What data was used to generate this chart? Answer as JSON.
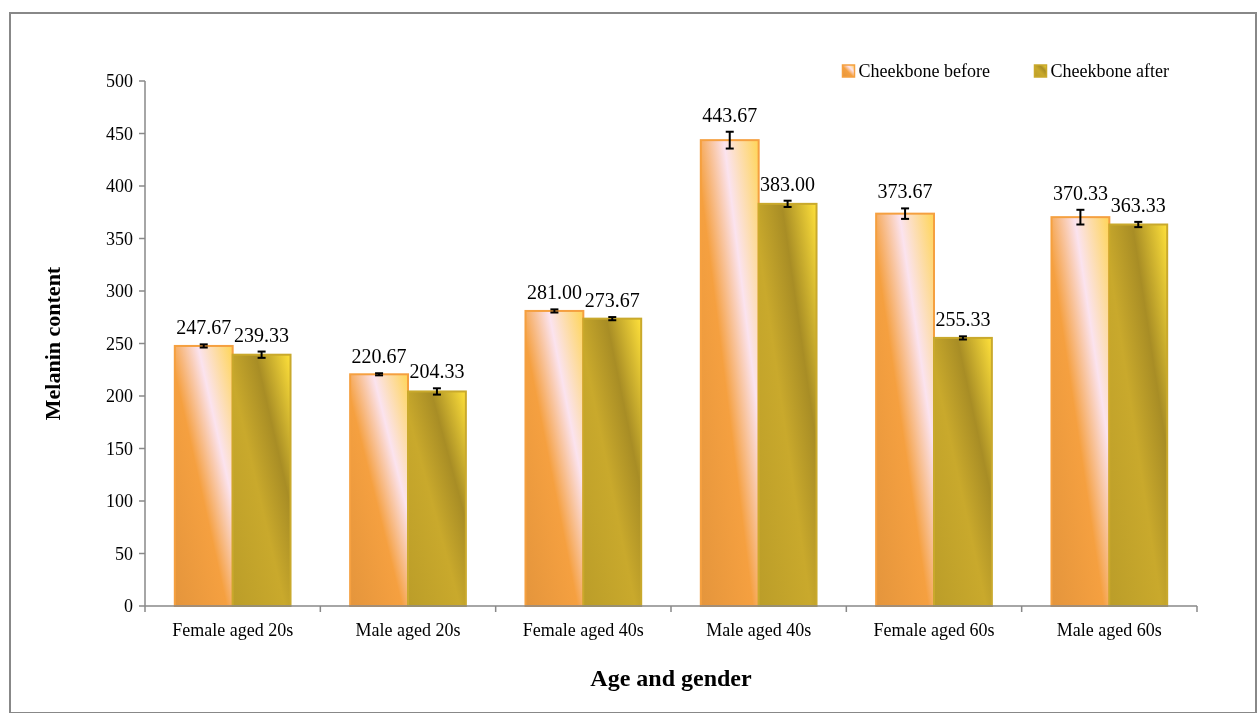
{
  "chart_data": {
    "type": "bar",
    "xlabel": "Age and gender",
    "ylabel": "Melanin content",
    "categories": [
      "Female aged 20s",
      "Male aged 20s",
      "Female aged 40s",
      "Male aged 40s",
      "Female aged 60s",
      "Male aged 60s"
    ],
    "series": [
      {
        "name": "Cheekbone before",
        "color": "#f5a040",
        "values": [
          247.67,
          220.67,
          281.0,
          443.67,
          373.67,
          370.33
        ],
        "errors": [
          1.5,
          1,
          1.5,
          8,
          5,
          7
        ],
        "value_labels": [
          "247.67",
          "220.67",
          "281.00",
          "443.67",
          "373.67",
          "370.33"
        ]
      },
      {
        "name": "Cheekbone after",
        "color": "#c9a92c",
        "values": [
          239.33,
          204.33,
          273.67,
          383.0,
          255.33,
          363.33
        ],
        "errors": [
          3,
          3,
          1.5,
          3,
          1.5,
          2.5
        ],
        "value_labels": [
          "239.33",
          "204.33",
          "273.67",
          "383.00",
          "255.33",
          "363.33"
        ]
      }
    ],
    "ylim": [
      0,
      500
    ],
    "yticks": [
      0,
      50,
      100,
      150,
      200,
      250,
      300,
      350,
      400,
      450,
      500
    ],
    "grid": false,
    "legend": "top right"
  }
}
